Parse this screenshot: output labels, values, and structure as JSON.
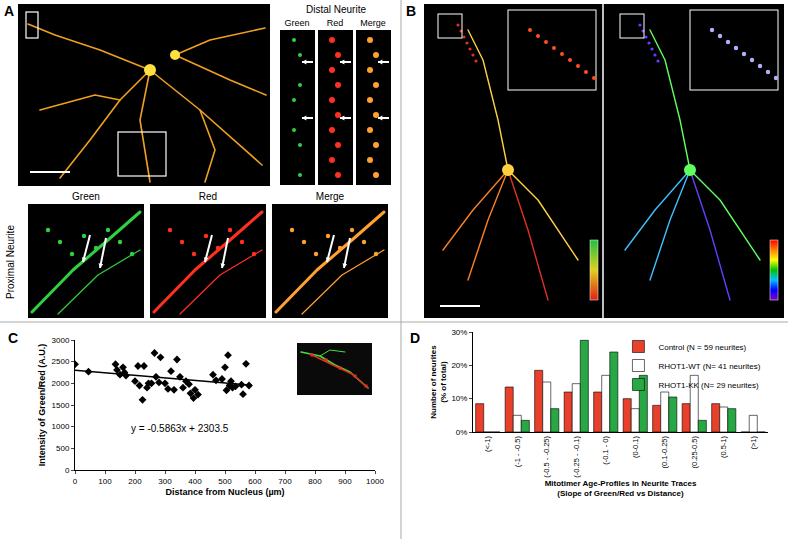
{
  "image_panels": {
    "A": {
      "label": "A",
      "distal_neurite": {
        "title": "Distal Neurite",
        "channels": [
          "Green",
          "Red",
          "Merge"
        ]
      },
      "proximal_neurite": {
        "title": "Proximal Neurite",
        "channels": [
          "Green",
          "Red",
          "Merge"
        ]
      }
    },
    "B": {
      "label": "B"
    }
  },
  "chart_data": [
    {
      "panel": "C",
      "type": "scatter",
      "x_label": "Distance from Nucleus (µm)",
      "y_label": "Intensity of Green/Red (A.U.)",
      "x": [
        0,
        45,
        135,
        140,
        150,
        160,
        165,
        170,
        200,
        210,
        215,
        225,
        230,
        240,
        245,
        255,
        265,
        270,
        280,
        285,
        300,
        310,
        320,
        330,
        340,
        350,
        360,
        370,
        380,
        385,
        395,
        400,
        410,
        460,
        470,
        490,
        500,
        505,
        510,
        515,
        520,
        525,
        535,
        555,
        560,
        570,
        580
      ],
      "values": [
        2440,
        2270,
        2440,
        2310,
        2200,
        2370,
        2250,
        2180,
        2050,
        2400,
        1950,
        1620,
        2400,
        1900,
        2000,
        2000,
        2700,
        2150,
        2020,
        2600,
        2000,
        1870,
        2280,
        1850,
        2550,
        2150,
        1900,
        2050,
        1980,
        1770,
        1660,
        1850,
        1740,
        2200,
        2070,
        2100,
        2370,
        1840,
        2650,
        1950,
        2050,
        1900,
        1930,
        1970,
        1750,
        2450,
        1950
      ],
      "color": "#000000",
      "marker": "diamond",
      "trend_line": {
        "slope": -0.5863,
        "intercept": 2303.5,
        "x": [
          0,
          580
        ]
      },
      "annotations": [
        "y = -0.5863x + 2303.5"
      ],
      "xlim": [
        0,
        1000
      ],
      "xticks": [
        0,
        100,
        200,
        300,
        400,
        500,
        600,
        700,
        800,
        900,
        1000
      ],
      "ylim": [
        0,
        3000
      ],
      "yticks": [
        0,
        500,
        1000,
        1500,
        2000,
        2500,
        3000
      ],
      "grid": false
    },
    {
      "panel": "D",
      "type": "bar",
      "x_label": "Mitotimer Age-Profiles in Neurite Traces\n(Slope of Green/Red vs Distance)",
      "y_label": "Number of neurites\n(% of total)",
      "categories": [
        "(<-1)",
        "(-1 - -0.5)",
        "(-0.5 - -0.25)",
        "(-0.25 - -0.1)",
        "(-0.1 - 0)",
        "(0-0.1)",
        "(0.1-0.25)",
        "(0.25-0.5)",
        "(0.5-1)",
        "(>1)"
      ],
      "series": [
        {
          "name": "Control (N = 59 neurites)",
          "color": "#e8402a",
          "values": [
            8.5,
            13.5,
            18.5,
            12,
            12,
            10,
            8,
            8.5,
            8.5,
            0
          ]
        },
        {
          "name": "RHOT1-WT (N= 41 neurites)",
          "color": "#ffffff",
          "values": [
            0,
            5,
            15,
            14.5,
            17,
            7,
            12,
            17,
            7.5,
            5
          ]
        },
        {
          "name": "RHOT1-KK (N= 29 neurites)",
          "color": "#27a844",
          "values": [
            0,
            3.5,
            7,
            27.5,
            24,
            17,
            10.5,
            3.5,
            7,
            0
          ]
        }
      ],
      "ylim": [
        0,
        30
      ],
      "yticks": [
        {
          "value": 0,
          "label": "0%"
        },
        {
          "value": 10,
          "label": "10%"
        },
        {
          "value": 20,
          "label": "20%"
        },
        {
          "value": 30,
          "label": "30%"
        }
      ],
      "legend": "top right",
      "grid": false
    }
  ]
}
